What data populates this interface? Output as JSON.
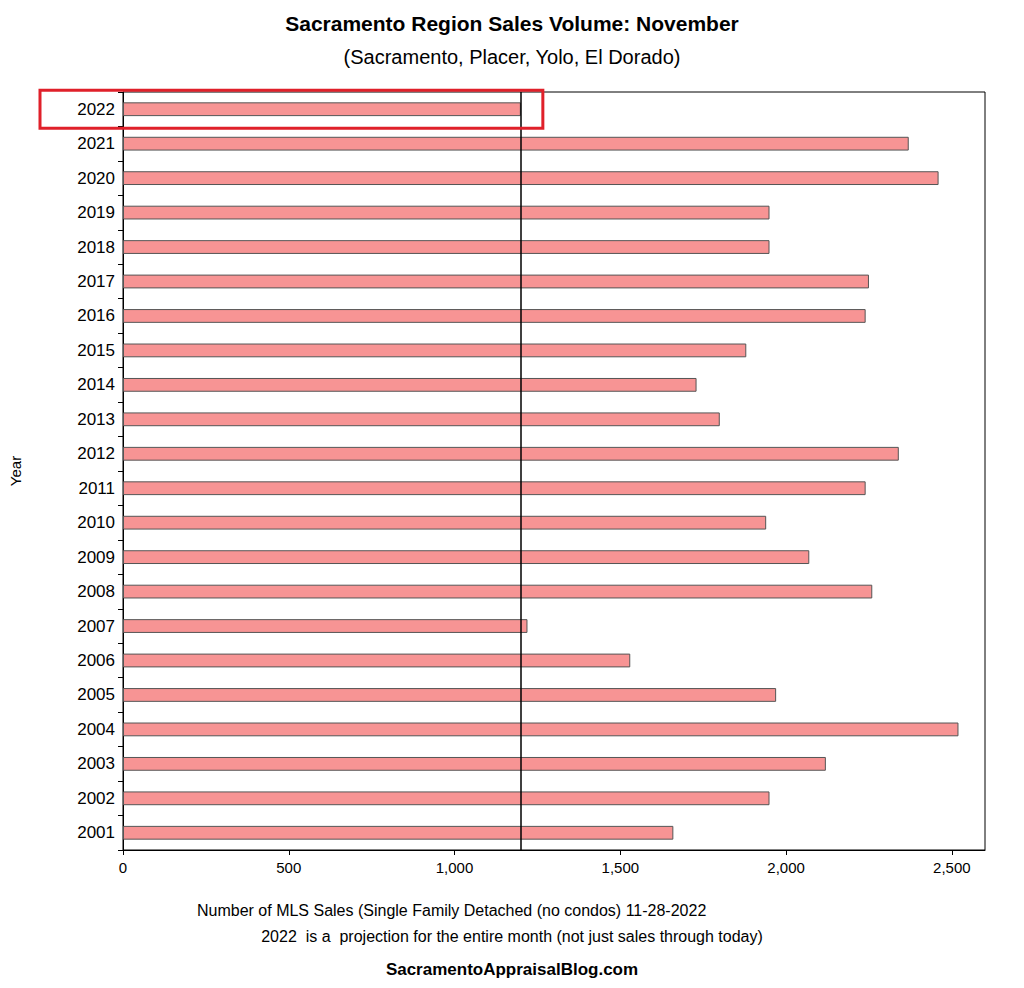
{
  "chart_data": {
    "type": "bar",
    "orientation": "horizontal",
    "title": "Sacramento Region Sales Volume: November",
    "subtitle": "(Sacramento, Placer, Yolo, El Dorado)",
    "y_label": "Year",
    "x_label": "Number of MLS Sales (Single Family Detached (no condos) 11-28-2022",
    "annotations": [
      "2022  is a  projection for the entire month (not just sales through today)",
      "SacramentoAppraisalBlog.com"
    ],
    "categories": [
      "2022",
      "2021",
      "2020",
      "2019",
      "2018",
      "2017",
      "2016",
      "2015",
      "2014",
      "2013",
      "2012",
      "2011",
      "2010",
      "2009",
      "2008",
      "2007",
      "2006",
      "2005",
      "2004",
      "2003",
      "2002",
      "2001"
    ],
    "values": [
      1200,
      2370,
      2460,
      1950,
      1950,
      2250,
      2240,
      1880,
      1730,
      1800,
      2340,
      2240,
      1940,
      2070,
      2260,
      1220,
      1530,
      1970,
      2520,
      2120,
      1950,
      1660
    ],
    "reference_line": 1200,
    "color": "#f79494",
    "xlim": [
      0,
      2600
    ],
    "xticks": [
      0,
      500,
      {
        "value": 1000,
        "label": "1,000"
      },
      {
        "value": 1500,
        "label": "1,500"
      },
      {
        "value": 2000,
        "label": "2,000"
      },
      {
        "value": 2500,
        "label": "2,500"
      }
    ],
    "grid": false
  }
}
